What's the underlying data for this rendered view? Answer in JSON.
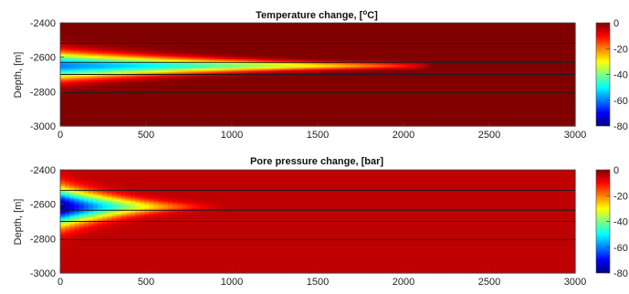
{
  "chart_data": [
    {
      "type": "heatmap",
      "title_main": "Temperature change, [",
      "title_sup": "o",
      "title_tail": "C]",
      "ylabel": "Depth, [m]",
      "xlabel": "",
      "xlim": [
        0,
        3000
      ],
      "ylim": [
        -3000,
        -2400
      ],
      "xticks": [
        0,
        500,
        1000,
        1500,
        2000,
        2500,
        3000
      ],
      "yticks": [
        -2400,
        -2600,
        -2800,
        -3000
      ],
      "layer_boundaries_depth": [
        -2520,
        -2630,
        -2700,
        -2805
      ],
      "colorbar": {
        "colormap": "jet",
        "min": -80,
        "max": 0,
        "ticks": [
          0,
          -20,
          -40,
          -60,
          -80
        ]
      },
      "plume": {
        "center_depth": -2650,
        "max_change": -60,
        "front_distance": 2150,
        "background": 0
      }
    },
    {
      "type": "heatmap",
      "title": "Pore pressure change, [bar]",
      "ylabel": "Depth, [m]",
      "xlabel": "",
      "xlim": [
        0,
        3000
      ],
      "ylim": [
        -3000,
        -2400
      ],
      "xticks": [
        0,
        500,
        1000,
        1500,
        2000,
        2500,
        3000
      ],
      "yticks": [
        -2400,
        -2600,
        -2800,
        -3000
      ],
      "layer_boundaries_depth": [
        -2520,
        -2635,
        -2700,
        -2805
      ],
      "colorbar": {
        "colormap": "jet",
        "min": -80,
        "max": 0,
        "ticks": [
          0,
          -20,
          -40,
          -60,
          -80
        ]
      },
      "plume": {
        "center_depth": -2615,
        "max_change": -75,
        "front_distance": 1000,
        "background": -5
      }
    }
  ]
}
